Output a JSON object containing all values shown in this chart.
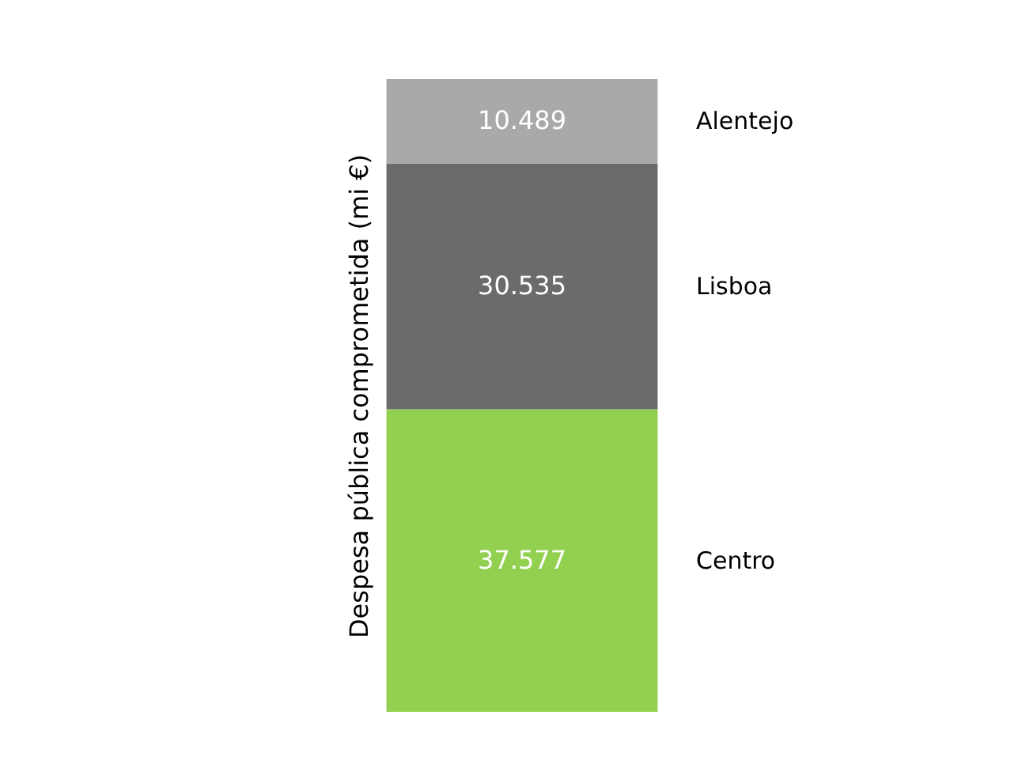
{
  "chart_data": {
    "type": "bar",
    "stacked": true,
    "ylabel": "Despesa  pública comprometida (mi €)",
    "categories": [
      null
    ],
    "data_labels": true,
    "tick_labels": false,
    "series": [
      {
        "name": "Centro",
        "color": "#92d050",
        "values": [
          37.577
        ]
      },
      {
        "name": "Lisboa",
        "color": "#6b6b6b",
        "values": [
          30.535
        ]
      },
      {
        "name": "Alentejo",
        "color": "#a9a9a9",
        "values": [
          10.489
        ]
      }
    ]
  }
}
